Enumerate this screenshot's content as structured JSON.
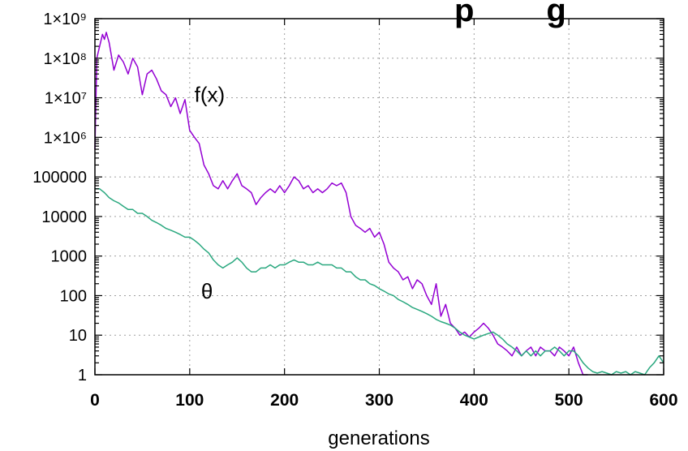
{
  "chart_data": {
    "type": "line",
    "title_fragment": "p        g",
    "xlabel": "generations",
    "ylabel": "",
    "xlim": [
      0,
      600
    ],
    "ylim": [
      1,
      1000000000
    ],
    "y_scale": "log",
    "grid": true,
    "x_ticks": [
      0,
      100,
      200,
      300,
      400,
      500,
      600
    ],
    "x_tick_labels": [
      "0",
      "100",
      "200",
      "300",
      "400",
      "500",
      "600"
    ],
    "y_ticks": [
      1,
      10,
      100,
      1000,
      10000,
      100000,
      1000000,
      10000000,
      100000000,
      1000000000
    ],
    "y_tick_labels": [
      "1",
      "10",
      "100",
      "1000",
      "10000",
      "100000",
      "1×10⁶",
      "1×10⁷",
      "1×10⁸",
      "1×10⁹"
    ],
    "annotations": [
      {
        "text": "f(x)",
        "x": 105,
        "y": 12000000
      },
      {
        "text": "θ",
        "x": 112,
        "y": 130
      }
    ],
    "series": [
      {
        "name": "f(x)",
        "color": "#9400d3",
        "x": [
          0,
          2,
          5,
          8,
          10,
          12,
          15,
          20,
          25,
          30,
          35,
          40,
          45,
          50,
          55,
          60,
          65,
          70,
          75,
          80,
          85,
          90,
          95,
          100,
          105,
          110,
          115,
          120,
          125,
          130,
          135,
          140,
          145,
          150,
          155,
          160,
          165,
          170,
          175,
          180,
          185,
          190,
          195,
          200,
          205,
          210,
          215,
          220,
          225,
          230,
          235,
          240,
          245,
          250,
          255,
          260,
          265,
          270,
          275,
          280,
          285,
          290,
          295,
          300,
          305,
          310,
          315,
          320,
          325,
          330,
          335,
          340,
          345,
          350,
          355,
          360,
          365,
          370,
          375,
          380,
          385,
          390,
          395,
          400,
          405,
          410,
          415,
          420,
          425,
          430,
          435,
          440,
          445,
          450,
          455,
          460,
          465,
          470,
          475,
          480,
          485,
          490,
          495,
          500,
          505,
          510,
          515,
          520
        ],
        "y": [
          500000,
          100000000,
          200000000,
          400000000,
          300000000,
          450000000,
          250000000,
          50000000,
          120000000,
          80000000,
          40000000,
          100000000,
          60000000,
          12000000,
          40000000,
          50000000,
          30000000,
          15000000,
          12000000,
          6000000,
          10000000,
          4000000,
          9000000,
          1500000,
          1000000,
          700000,
          200000,
          120000,
          60000,
          50000,
          80000,
          50000,
          80000,
          120000,
          60000,
          50000,
          40000,
          20000,
          30000,
          40000,
          50000,
          40000,
          60000,
          40000,
          60000,
          100000,
          80000,
          50000,
          60000,
          40000,
          50000,
          40000,
          50000,
          70000,
          60000,
          70000,
          40000,
          10000,
          6000,
          5000,
          4000,
          5000,
          3000,
          4000,
          2000,
          700,
          500,
          400,
          250,
          300,
          150,
          250,
          200,
          100,
          60,
          200,
          30,
          60,
          20,
          15,
          10,
          12,
          9,
          12,
          15,
          20,
          15,
          10,
          6,
          5,
          4,
          3,
          5,
          3,
          4,
          5,
          3,
          5,
          4,
          4,
          3,
          5,
          4,
          3,
          5,
          2,
          1,
          1
        ]
      },
      {
        "name": "θ",
        "color": "#2aa87f",
        "x": [
          0,
          5,
          10,
          15,
          20,
          25,
          30,
          35,
          40,
          45,
          50,
          55,
          60,
          65,
          70,
          75,
          80,
          85,
          90,
          95,
          100,
          105,
          110,
          115,
          120,
          125,
          130,
          135,
          140,
          145,
          150,
          155,
          160,
          165,
          170,
          175,
          180,
          185,
          190,
          195,
          200,
          205,
          210,
          215,
          220,
          225,
          230,
          235,
          240,
          245,
          250,
          255,
          260,
          265,
          270,
          275,
          280,
          285,
          290,
          295,
          300,
          305,
          310,
          315,
          320,
          325,
          330,
          335,
          340,
          345,
          350,
          355,
          360,
          365,
          370,
          375,
          380,
          385,
          390,
          395,
          400,
          405,
          410,
          415,
          420,
          425,
          430,
          435,
          440,
          445,
          450,
          455,
          460,
          465,
          470,
          475,
          480,
          485,
          490,
          495,
          500,
          505,
          510,
          515,
          520,
          525,
          530,
          535,
          540,
          545,
          550,
          555,
          560,
          565,
          570,
          575,
          580,
          585,
          590,
          595,
          600
        ],
        "y": [
          50000,
          50000,
          40000,
          30000,
          25000,
          22000,
          18000,
          15000,
          15000,
          12000,
          12000,
          10000,
          8000,
          7000,
          6000,
          5000,
          4500,
          4000,
          3500,
          3000,
          3000,
          2500,
          2000,
          1500,
          1200,
          800,
          600,
          500,
          600,
          700,
          900,
          700,
          500,
          400,
          400,
          500,
          500,
          600,
          500,
          600,
          600,
          700,
          800,
          700,
          700,
          600,
          600,
          700,
          600,
          600,
          600,
          500,
          500,
          400,
          400,
          300,
          250,
          250,
          200,
          180,
          150,
          130,
          110,
          100,
          80,
          70,
          60,
          50,
          45,
          40,
          35,
          30,
          25,
          22,
          20,
          18,
          15,
          12,
          10,
          9,
          8,
          9,
          10,
          11,
          12,
          10,
          8,
          6,
          5,
          4,
          3,
          4,
          3,
          4,
          3,
          4,
          4,
          5,
          4,
          3,
          4,
          4,
          3,
          2,
          1.5,
          1.2,
          1.1,
          1.2,
          1.1,
          1.0,
          1.2,
          1.1,
          1.2,
          1.0,
          1.2,
          1.1,
          1.0,
          1.5,
          2,
          3,
          2
        ]
      }
    ]
  }
}
